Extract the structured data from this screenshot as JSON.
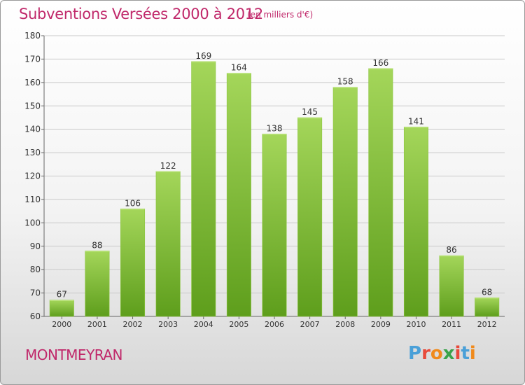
{
  "header": {
    "title": "Subventions Versées 2000 à 2012",
    "subtitle": "(en milliers d'€)"
  },
  "footer": {
    "commune": "MONTMEYRAN",
    "logo": "Proxiti"
  },
  "colors": {
    "title": "#c0286a",
    "bar_light": "#a4d65a",
    "bar_dark": "#5e9e1c"
  },
  "chart_data": {
    "type": "bar",
    "categories": [
      "2000",
      "2001",
      "2002",
      "2003",
      "2004",
      "2005",
      "2006",
      "2007",
      "2008",
      "2009",
      "2010",
      "2011",
      "2012"
    ],
    "values": [
      67,
      88,
      106,
      122,
      169,
      164,
      138,
      145,
      158,
      166,
      141,
      86,
      68
    ],
    "ylim": [
      60,
      180
    ],
    "yticks": [
      60,
      70,
      80,
      90,
      100,
      110,
      120,
      130,
      140,
      150,
      160,
      170,
      180
    ],
    "grid": true,
    "data_labels": true
  }
}
